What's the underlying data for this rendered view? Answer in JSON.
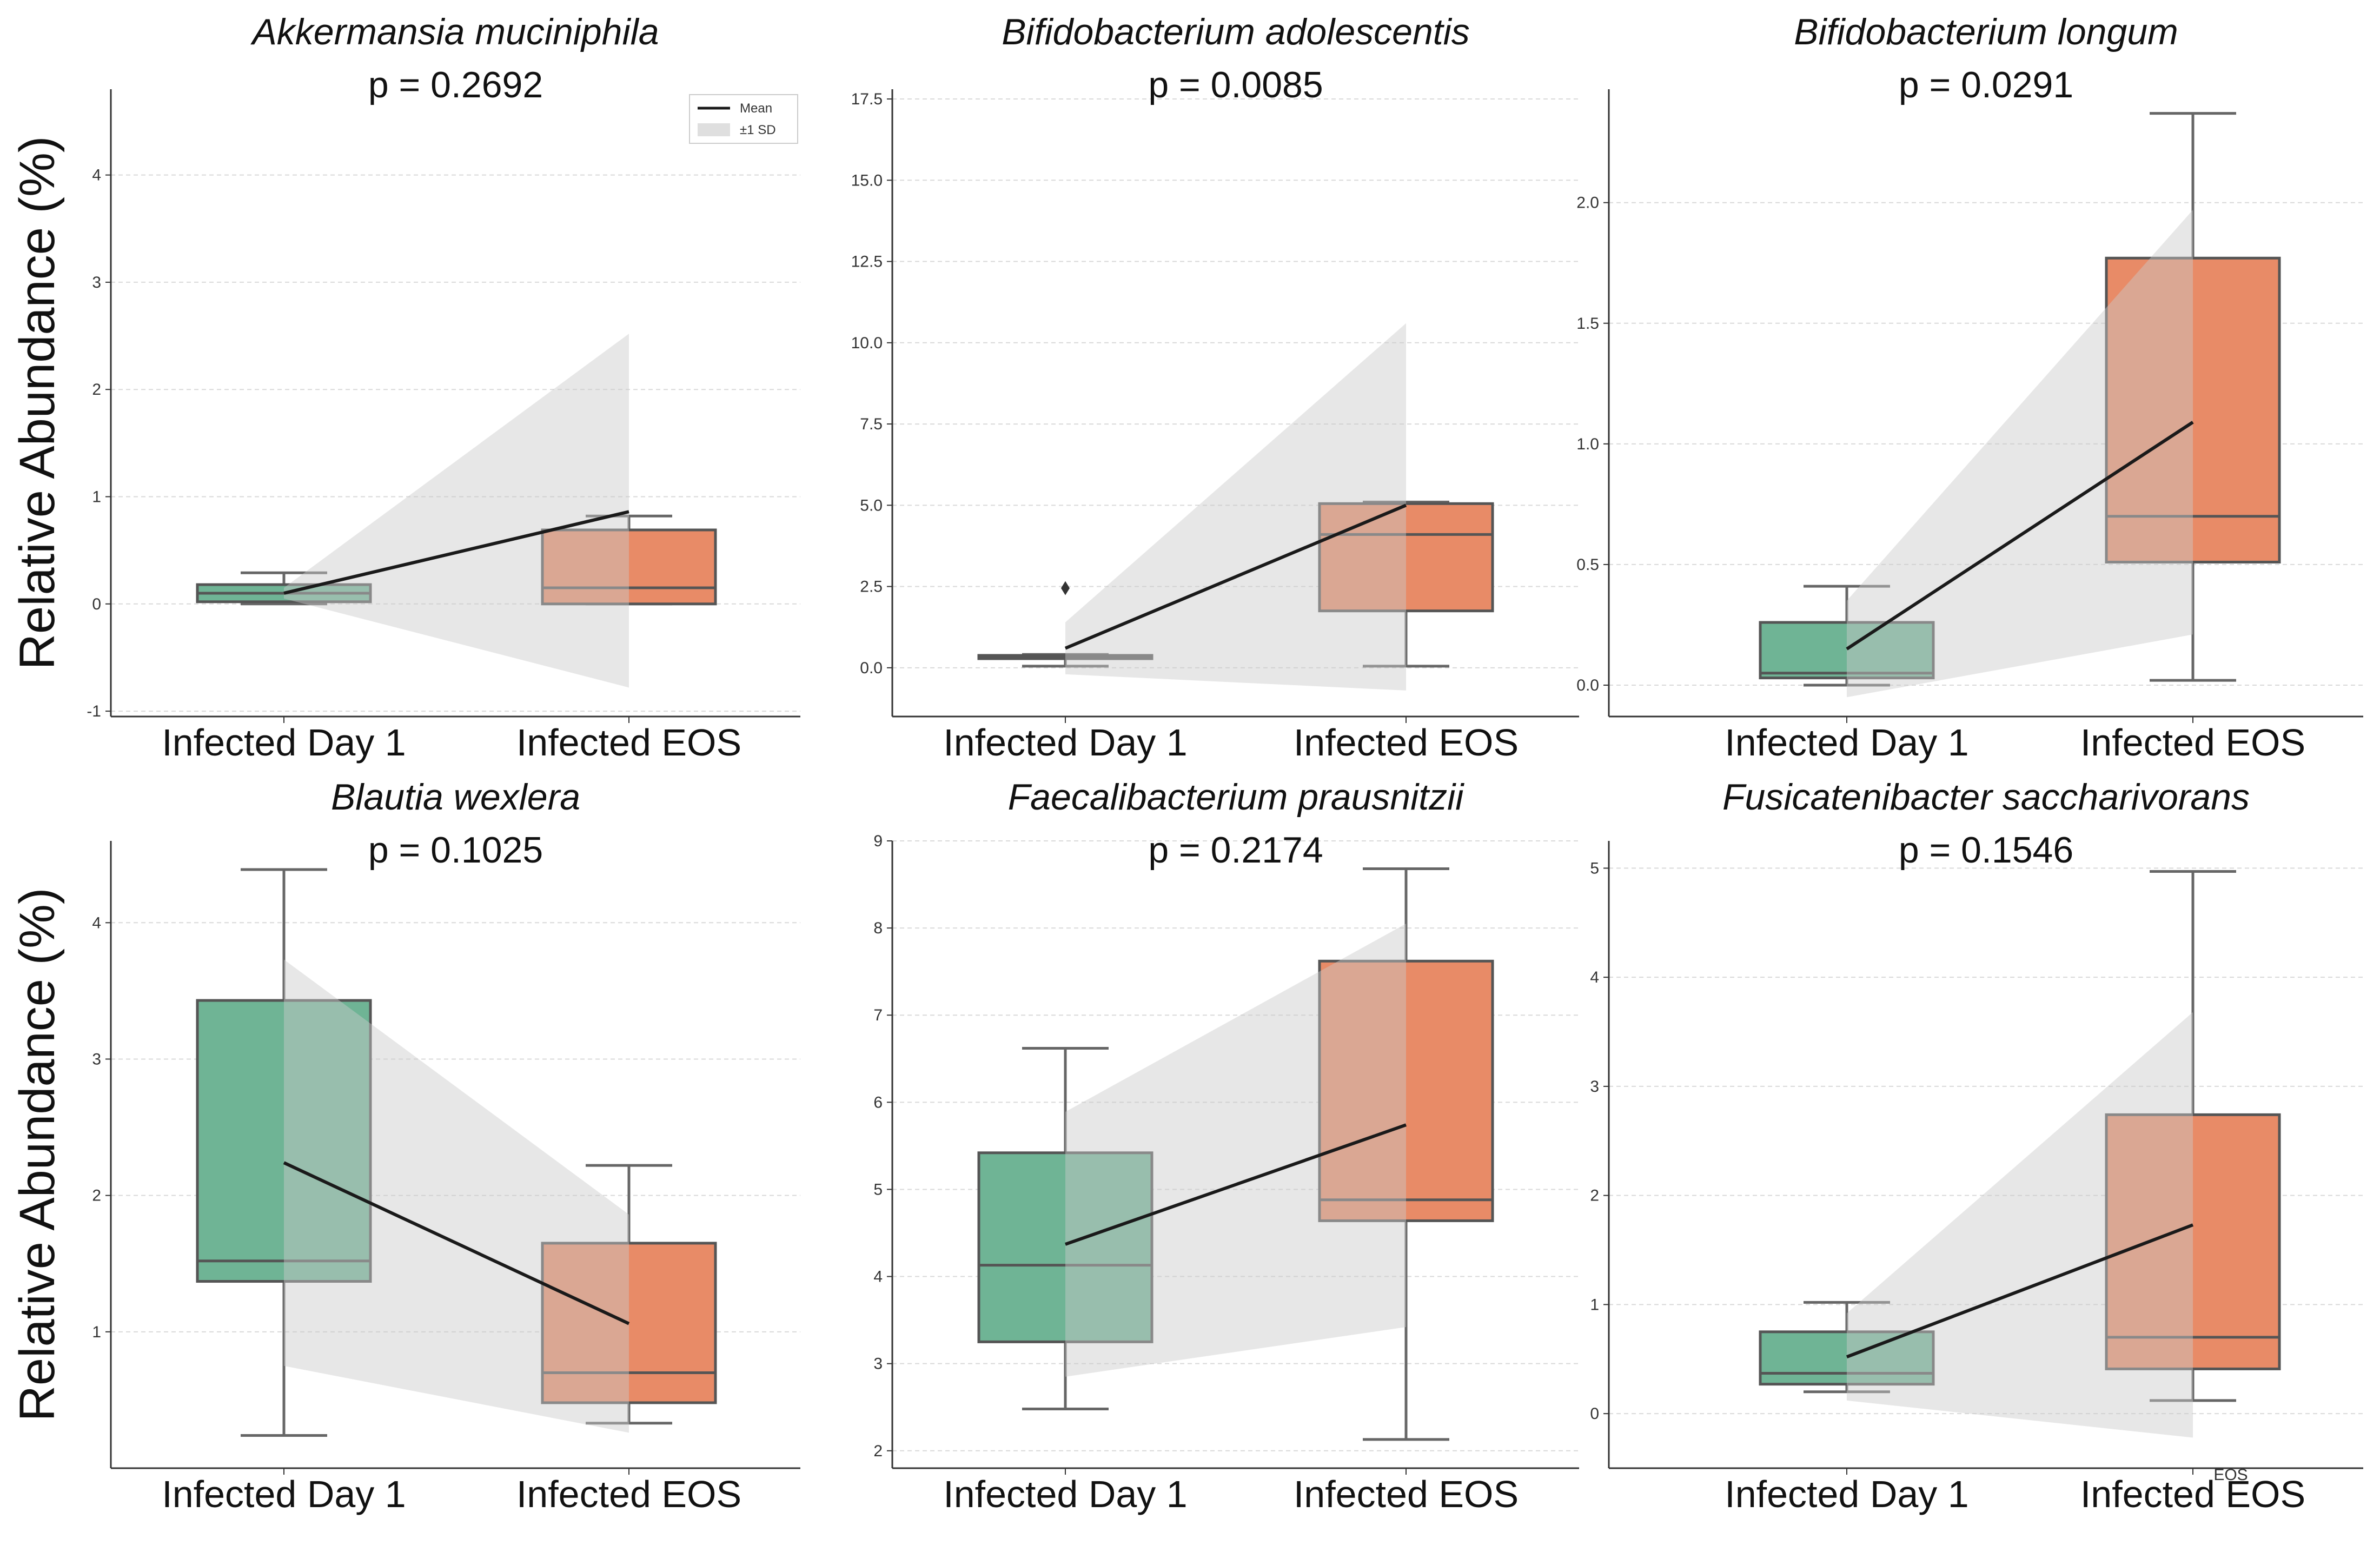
{
  "figure": {
    "ylabel": "Relative Abundance (%)",
    "colors": {
      "day1": "#6fb495",
      "eos": "#e88b67",
      "band": "#c9c9c9",
      "mean": "#1a1a1a"
    },
    "legend": {
      "mean_label": "Mean",
      "band_label": "±1 SD"
    }
  },
  "chart_data": [
    {
      "type": "box",
      "title": "Akkermansia muciniphila",
      "p_label": "p = 0.2692",
      "categories": [
        "Infected Day 1",
        "Infected EOS"
      ],
      "ylim": [
        -1.05,
        4.8
      ],
      "yticks": [
        -1,
        0,
        1,
        2,
        3,
        4
      ],
      "boxes": [
        {
          "whislo": 0,
          "q1": 0.02,
          "med": 0.1,
          "q3": 0.18,
          "whishi": 0.29,
          "fliers": []
        },
        {
          "whislo": 0,
          "q1": 0.0,
          "med": 0.15,
          "q3": 0.69,
          "whishi": 0.82,
          "fliers": []
        }
      ],
      "mean": [
        0.1,
        0.86
      ],
      "sd_lo": [
        0.05,
        -0.78
      ],
      "sd_hi": [
        0.15,
        2.52
      ],
      "legend": true,
      "show_ylabel": true
    },
    {
      "type": "box",
      "title": "Bifidobacterium adolescentis",
      "p_label": "p = 0.0085",
      "categories": [
        "Infected Day 1",
        "Infected EOS"
      ],
      "ylim": [
        -1.5,
        17.8
      ],
      "yticks": [
        0.0,
        2.5,
        5.0,
        7.5,
        10.0,
        12.5,
        15.0,
        17.5
      ],
      "boxes": [
        {
          "whislo": 0.05,
          "q1": 0.28,
          "med": 0.33,
          "q3": 0.38,
          "whishi": 0.41,
          "fliers": [
            2.45
          ]
        },
        {
          "whislo": 0.05,
          "q1": 1.75,
          "med": 4.1,
          "q3": 5.05,
          "whishi": 5.1,
          "fliers": []
        }
      ],
      "mean": [
        0.6,
        5.0
      ],
      "sd_lo": [
        -0.2,
        -0.7
      ],
      "sd_hi": [
        1.4,
        10.6
      ],
      "legend": false,
      "show_ylabel": false
    },
    {
      "type": "box",
      "title": "Bifidobacterium longum",
      "p_label": "p = 0.0291",
      "categories": [
        "Infected Day 1",
        "Infected EOS"
      ],
      "ylim": [
        -0.13,
        2.47
      ],
      "yticks": [
        0.0,
        0.5,
        1.0,
        1.5,
        2.0
      ],
      "boxes": [
        {
          "whislo": 0.0,
          "q1": 0.03,
          "med": 0.05,
          "q3": 0.26,
          "whishi": 0.41,
          "fliers": []
        },
        {
          "whislo": 0.02,
          "q1": 0.51,
          "med": 0.7,
          "q3": 1.77,
          "whishi": 2.37,
          "fliers": []
        }
      ],
      "mean": [
        0.15,
        1.09
      ],
      "sd_lo": [
        -0.05,
        0.21
      ],
      "sd_hi": [
        0.35,
        1.97
      ],
      "legend": false,
      "show_ylabel": false
    },
    {
      "type": "box",
      "title": "Blautia wexlera",
      "p_label": "p = 0.1025",
      "categories": [
        "Infected Day 1",
        "Infected EOS"
      ],
      "ylim": [
        0.0,
        4.6
      ],
      "yticks": [
        1,
        2,
        3,
        4
      ],
      "boxes": [
        {
          "whislo": 0.24,
          "q1": 1.37,
          "med": 1.52,
          "q3": 3.43,
          "whishi": 4.39,
          "fliers": []
        },
        {
          "whislo": 0.33,
          "q1": 0.48,
          "med": 0.7,
          "q3": 1.65,
          "whishi": 2.22,
          "fliers": []
        }
      ],
      "mean": [
        2.24,
        1.06
      ],
      "sd_lo": [
        0.75,
        0.26
      ],
      "sd_hi": [
        3.73,
        1.86
      ],
      "legend": false,
      "show_ylabel": true
    },
    {
      "type": "box",
      "title": "Faecalibacterium prausnitzii",
      "p_label": "p = 0.2174",
      "categories": [
        "Infected Day 1",
        "Infected EOS"
      ],
      "ylim": [
        1.8,
        9.0
      ],
      "yticks": [
        2,
        3,
        4,
        5,
        6,
        7,
        8,
        9
      ],
      "boxes": [
        {
          "whislo": 2.48,
          "q1": 3.25,
          "med": 4.13,
          "q3": 5.42,
          "whishi": 6.62,
          "fliers": []
        },
        {
          "whislo": 2.13,
          "q1": 4.64,
          "med": 4.88,
          "q3": 7.62,
          "whishi": 8.68,
          "fliers": []
        }
      ],
      "mean": [
        4.37,
        5.74
      ],
      "sd_lo": [
        2.85,
        3.42
      ],
      "sd_hi": [
        5.89,
        8.05
      ],
      "legend": false,
      "show_ylabel": false
    },
    {
      "type": "box",
      "title": "Fusicatenibacter saccharivorans",
      "p_label": "p = 0.1546",
      "categories": [
        "Infected Day 1",
        "Infected EOS"
      ],
      "ylim": [
        -0.5,
        5.25
      ],
      "yticks": [
        0,
        1,
        2,
        3,
        4,
        5
      ],
      "boxes": [
        {
          "whislo": 0.2,
          "q1": 0.27,
          "med": 0.37,
          "q3": 0.75,
          "whishi": 1.02,
          "fliers": []
        },
        {
          "whislo": 0.12,
          "q1": 0.41,
          "med": 0.7,
          "q3": 2.74,
          "whishi": 4.97,
          "fliers": []
        }
      ],
      "mean": [
        0.52,
        1.73
      ],
      "sd_lo": [
        0.12,
        -0.22
      ],
      "sd_hi": [
        0.92,
        3.68
      ],
      "legend": false,
      "show_ylabel": false,
      "extra_label": "EOS"
    }
  ]
}
